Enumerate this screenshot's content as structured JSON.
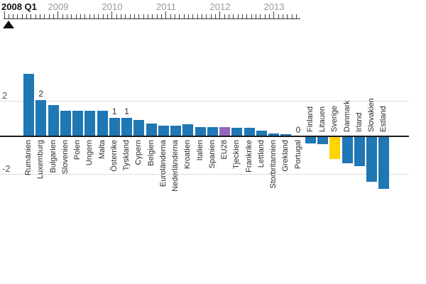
{
  "timeline": {
    "current_label": "2008 Q1",
    "year_labels": [
      "2009",
      "2010",
      "2011",
      "2012",
      "2013"
    ],
    "months_total": 66,
    "months_per_year": 12
  },
  "y_axis": {
    "tick_labels": [
      "2",
      "-2"
    ],
    "tick_values": [
      2,
      -2
    ]
  },
  "chart_data": {
    "type": "bar",
    "title": "",
    "xlabel": "",
    "ylabel": "",
    "categories": [
      "Rumänien",
      "Luxemburg",
      "Bulgarien",
      "Slovenien",
      "Polen",
      "Ungern",
      "Malta",
      "Österrike",
      "Tyskland",
      "Cypern",
      "Belgien",
      "Euroländerna",
      "Nederländerna",
      "Kroatien",
      "Italien",
      "Spanien",
      "EU28",
      "Tjeckien",
      "Frankrike",
      "Lettland",
      "Storbritannien",
      "Grekland",
      "Portugal",
      "Finland",
      "Litauen",
      "Sverige",
      "Danmark",
      "Irland",
      "Slovakien",
      "Estland"
    ],
    "values": [
      3.4,
      2.0,
      1.7,
      1.4,
      1.4,
      1.4,
      1.4,
      1.0,
      1.0,
      0.9,
      0.7,
      0.6,
      0.6,
      0.65,
      0.5,
      0.5,
      0.5,
      0.45,
      0.45,
      0.3,
      0.15,
      0.1,
      0.0,
      -0.35,
      -0.4,
      -1.2,
      -1.45,
      -1.6,
      -2.45,
      -2.85
    ],
    "ylim": [
      -3.2,
      3.6
    ],
    "y_ticks": [
      2,
      -2
    ],
    "grid": true,
    "legend": "none",
    "default_color": "#1f77b4",
    "highlight_colors": {
      "EU28": "#9467bd",
      "Sverige": "#fed500"
    },
    "value_labels": [
      {
        "index": 1,
        "text": "2"
      },
      {
        "index": 7,
        "text": "1"
      },
      {
        "index": 8,
        "text": "1"
      },
      {
        "index": 22,
        "text": "0"
      }
    ],
    "time_axis": {
      "start_label": "2008 Q1",
      "years": [
        "2009",
        "2010",
        "2011",
        "2012",
        "2013"
      ]
    }
  }
}
